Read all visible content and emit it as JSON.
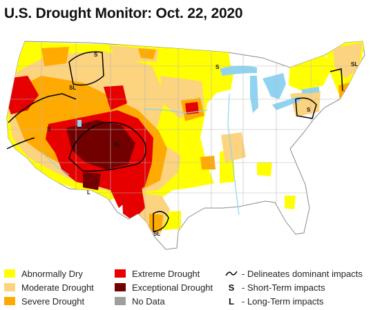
{
  "title": "U.S. Drought Monitor: Oct. 22, 2020",
  "colors": {
    "abnormally_dry": "#ffff00",
    "moderate": "#fcd37f",
    "severe": "#ffaa00",
    "extreme": "#e60000",
    "exceptional": "#730000",
    "no_data": "#9e9e9e",
    "water": "#8fd3f0",
    "land": "#ffffff",
    "border": "#b8b8b8",
    "impact_line": "#000000"
  },
  "map": {
    "impact_labels": [
      "S",
      "SL",
      "SL",
      "S",
      "S",
      "SL",
      "S",
      "L",
      "SL"
    ]
  },
  "legend": {
    "categories": [
      {
        "label": "Abnormally Dry",
        "color": "#ffff00"
      },
      {
        "label": "Moderate Drought",
        "color": "#fcd37f"
      },
      {
        "label": "Severe Drought",
        "color": "#ffaa00"
      },
      {
        "label": "Extreme Drought",
        "color": "#e60000"
      },
      {
        "label": "Exceptional Drought",
        "color": "#730000"
      },
      {
        "label": "No Data",
        "color": "#9e9e9e"
      }
    ],
    "keys": [
      {
        "symbol": "~",
        "label": "- Delineates dominant impacts"
      },
      {
        "symbol": "S",
        "label": "- Short-Term impacts"
      },
      {
        "symbol": "L",
        "label": "- Long-Term impacts"
      }
    ]
  }
}
